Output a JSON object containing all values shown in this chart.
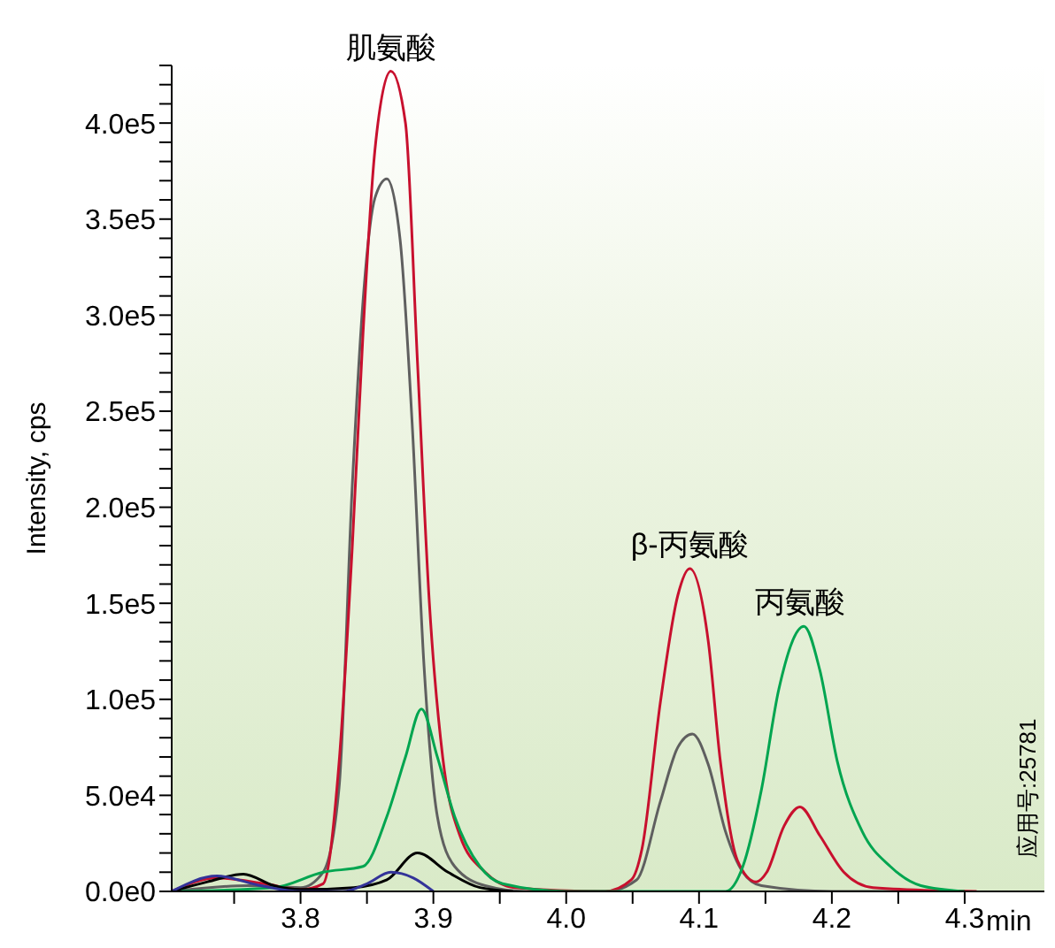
{
  "chart_data": {
    "type": "line",
    "ylabel": "Intensity, cps",
    "xlabel": "min",
    "xlim": [
      3.703,
      4.36
    ],
    "xticks": [
      {
        "value": 3.75,
        "label": null
      },
      3.8,
      {
        "value": 3.85,
        "label": null
      },
      3.9,
      {
        "value": 3.95,
        "label": null
      },
      {
        "value": 4,
        "label": "4.0"
      },
      {
        "value": 4.05,
        "label": null
      },
      4.1,
      {
        "value": 4.15,
        "label": null
      },
      4.2,
      {
        "value": 4.25,
        "label": null
      },
      4.3
    ],
    "ylim": [
      0,
      430000
    ],
    "yticks": [
      {
        "value": 0,
        "label": "0.0e0"
      },
      {
        "value": 10000,
        "label": null
      },
      {
        "value": 20000,
        "label": null
      },
      {
        "value": 30000,
        "label": null
      },
      {
        "value": 40000,
        "label": null
      },
      {
        "value": 50000,
        "label": "5.0e4"
      },
      {
        "value": 60000,
        "label": null
      },
      {
        "value": 70000,
        "label": null
      },
      {
        "value": 80000,
        "label": null
      },
      {
        "value": 90000,
        "label": null
      },
      {
        "value": 100000,
        "label": "1.0e5"
      },
      {
        "value": 110000,
        "label": null
      },
      {
        "value": 120000,
        "label": null
      },
      {
        "value": 130000,
        "label": null
      },
      {
        "value": 140000,
        "label": null
      },
      {
        "value": 150000,
        "label": "1.5e5"
      },
      {
        "value": 160000,
        "label": null
      },
      {
        "value": 170000,
        "label": null
      },
      {
        "value": 180000,
        "label": null
      },
      {
        "value": 190000,
        "label": null
      },
      {
        "value": 200000,
        "label": "2.0e5"
      },
      {
        "value": 210000,
        "label": null
      },
      {
        "value": 220000,
        "label": null
      },
      {
        "value": 230000,
        "label": null
      },
      {
        "value": 240000,
        "label": null
      },
      {
        "value": 250000,
        "label": "2.5e5"
      },
      {
        "value": 260000,
        "label": null
      },
      {
        "value": 270000,
        "label": null
      },
      {
        "value": 280000,
        "label": null
      },
      {
        "value": 290000,
        "label": null
      },
      {
        "value": 300000,
        "label": "3.0e5"
      },
      {
        "value": 310000,
        "label": null
      },
      {
        "value": 320000,
        "label": null
      },
      {
        "value": 330000,
        "label": null
      },
      {
        "value": 340000,
        "label": null
      },
      {
        "value": 350000,
        "label": "3.5e5"
      },
      {
        "value": 360000,
        "label": null
      },
      {
        "value": 370000,
        "label": null
      },
      {
        "value": 380000,
        "label": null
      },
      {
        "value": 390000,
        "label": null
      },
      {
        "value": 400000,
        "label": "4.0e5"
      },
      {
        "value": 410000,
        "label": null
      },
      {
        "value": 420000,
        "label": null
      },
      {
        "value": 430000,
        "label": null
      }
    ],
    "marker": "none",
    "line_style": "solid",
    "series": [
      {
        "color": "#5f5f5f",
        "x": [
          3.703,
          3.76,
          3.8,
          3.817,
          3.829,
          3.839,
          3.847,
          3.856,
          3.865,
          3.875,
          3.884,
          3.893,
          3.903,
          3.916,
          3.939,
          3.97,
          4.03,
          4.053,
          4.071,
          4.084,
          4.095,
          4.107,
          4.12,
          4.133,
          4.147,
          4.2,
          4.3
        ],
        "values": [
          0,
          3000,
          2000,
          10000,
          54000,
          212000,
          307000,
          361000,
          371000,
          339000,
          244000,
          117000,
          39000,
          13000,
          3000,
          0,
          0,
          6000,
          47000,
          75000,
          82000,
          66000,
          31000,
          10000,
          3000,
          0,
          0
        ]
      },
      {
        "color": "#c8102e",
        "x": [
          3.703,
          3.737,
          3.773,
          3.8,
          3.817,
          3.829,
          3.839,
          3.847,
          3.856,
          3.868,
          3.879,
          3.888,
          3.897,
          3.907,
          3.92,
          3.939,
          3.961,
          4.029,
          4.049,
          4.057,
          4.071,
          4.084,
          4.093,
          4.107,
          4.116,
          4.129,
          4.143,
          4.151,
          4.164,
          4.176,
          4.191,
          4.209,
          4.231,
          4.309
        ],
        "values": [
          0,
          7000,
          4000,
          1000,
          4000,
          67000,
          180000,
          290000,
          386000,
          427000,
          400000,
          276000,
          150000,
          70000,
          29000,
          10000,
          2000,
          0,
          6000,
          22000,
          99000,
          154000,
          168000,
          130000,
          68000,
          16000,
          5000,
          10000,
          34000,
          44000,
          29000,
          10000,
          2000,
          0
        ]
      },
      {
        "color": "#00a550",
        "x": [
          3.703,
          3.78,
          3.817,
          3.847,
          3.865,
          3.879,
          3.891,
          3.903,
          3.916,
          3.935,
          3.952,
          4.0,
          4.12,
          4.133,
          4.147,
          4.16,
          4.179,
          4.191,
          4.204,
          4.223,
          4.244,
          4.267,
          4.3
        ],
        "values": [
          0,
          2000,
          10000,
          13000,
          39000,
          70000,
          95000,
          70000,
          39000,
          13000,
          4000,
          0,
          0,
          13000,
          53000,
          105000,
          138000,
          115000,
          68000,
          31000,
          13000,
          3000,
          0
        ]
      },
      {
        "color": "#000000",
        "x": [
          3.703,
          3.73,
          3.757,
          3.78,
          3.8,
          3.84,
          3.865,
          3.888,
          3.911,
          3.935,
          3.96
        ],
        "values": [
          0,
          5000,
          9000,
          3000,
          1000,
          2000,
          6000,
          20000,
          10000,
          2000,
          0
        ]
      },
      {
        "color": "#333399",
        "x": [
          3.703,
          3.737,
          3.77,
          3.8,
          3.832,
          3.85,
          3.868,
          3.885,
          3.9
        ],
        "values": [
          0,
          8000,
          3000,
          0,
          0,
          4000,
          10000,
          7000,
          0
        ]
      }
    ],
    "annotations": [
      {
        "text": "肌氨酸",
        "x": 3.868,
        "y": 427000
      },
      {
        "text": "β-丙氨酸",
        "x": 4.093,
        "y": 168000
      },
      {
        "text": "丙氨酸",
        "x": 4.176,
        "y": 138000
      },
      "应用号:25781"
    ]
  }
}
